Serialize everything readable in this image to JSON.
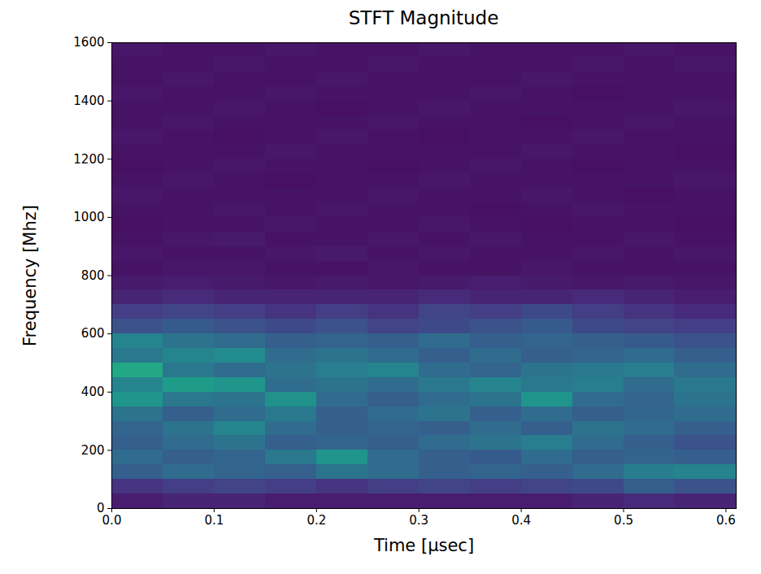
{
  "chart_data": {
    "type": "heatmap",
    "title": "STFT Magnitude",
    "x_label": "Time [μsec]",
    "y_label": "Frequency [Mhz]",
    "xlim": [
      0,
      0.61
    ],
    "ylim": [
      0,
      1600
    ],
    "xticks": [
      {
        "value": 0,
        "label": "0.0"
      },
      0.1,
      0.2,
      0.3,
      0.4,
      0.5,
      0.6
    ],
    "yticks": [
      0,
      200,
      400,
      600,
      800,
      1000,
      1200,
      1400,
      1600
    ],
    "grid": false,
    "color": "viridis",
    "magnitude_range": [
      0,
      1
    ],
    "time_edges": [
      0,
      0.05,
      0.1,
      0.15,
      0.2,
      0.25,
      0.3,
      0.35,
      0.4,
      0.45,
      0.5,
      0.55,
      0.61
    ],
    "frequency_edges": [
      0,
      50,
      100,
      150,
      200,
      250,
      300,
      350,
      400,
      450,
      500,
      550,
      600,
      650,
      700,
      750,
      800,
      850,
      900,
      950,
      1000,
      1050,
      1100,
      1150,
      1200,
      1250,
      1300,
      1350,
      1400,
      1450,
      1500,
      1550,
      1600
    ],
    "magnitude": [
      [
        0.08,
        0.1,
        0.1,
        0.08,
        0.08,
        0.08,
        0.08,
        0.08,
        0.08,
        0.1,
        0.12,
        0.1
      ],
      [
        0.15,
        0.18,
        0.2,
        0.18,
        0.15,
        0.18,
        0.2,
        0.18,
        0.2,
        0.22,
        0.3,
        0.25
      ],
      [
        0.3,
        0.35,
        0.32,
        0.3,
        0.38,
        0.35,
        0.3,
        0.32,
        0.3,
        0.35,
        0.42,
        0.45
      ],
      [
        0.35,
        0.3,
        0.32,
        0.4,
        0.52,
        0.35,
        0.3,
        0.28,
        0.35,
        0.3,
        0.32,
        0.3
      ],
      [
        0.3,
        0.35,
        0.38,
        0.3,
        0.32,
        0.3,
        0.35,
        0.38,
        0.42,
        0.35,
        0.3,
        0.25
      ],
      [
        0.32,
        0.38,
        0.45,
        0.35,
        0.3,
        0.32,
        0.3,
        0.35,
        0.3,
        0.38,
        0.35,
        0.3
      ],
      [
        0.38,
        0.3,
        0.35,
        0.4,
        0.3,
        0.35,
        0.38,
        0.3,
        0.35,
        0.3,
        0.33,
        0.35
      ],
      [
        0.52,
        0.4,
        0.38,
        0.5,
        0.35,
        0.3,
        0.35,
        0.38,
        0.52,
        0.35,
        0.32,
        0.38
      ],
      [
        0.45,
        0.55,
        0.52,
        0.35,
        0.38,
        0.35,
        0.4,
        0.45,
        0.4,
        0.42,
        0.35,
        0.4
      ],
      [
        0.6,
        0.4,
        0.35,
        0.38,
        0.42,
        0.45,
        0.35,
        0.32,
        0.38,
        0.4,
        0.42,
        0.35
      ],
      [
        0.4,
        0.45,
        0.48,
        0.35,
        0.38,
        0.35,
        0.3,
        0.35,
        0.3,
        0.32,
        0.35,
        0.3
      ],
      [
        0.45,
        0.38,
        0.35,
        0.3,
        0.32,
        0.3,
        0.35,
        0.3,
        0.32,
        0.3,
        0.28,
        0.25
      ],
      [
        0.25,
        0.28,
        0.25,
        0.22,
        0.25,
        0.2,
        0.22,
        0.25,
        0.28,
        0.22,
        0.2,
        0.18
      ],
      [
        0.18,
        0.2,
        0.18,
        0.15,
        0.18,
        0.15,
        0.2,
        0.18,
        0.22,
        0.18,
        0.15,
        0.12
      ],
      [
        0.1,
        0.12,
        0.1,
        0.1,
        0.1,
        0.1,
        0.12,
        0.1,
        0.1,
        0.12,
        0.1,
        0.08
      ],
      [
        0.07,
        0.08,
        0.07,
        0.06,
        0.07,
        0.06,
        0.07,
        0.08,
        0.07,
        0.06,
        0.07,
        0.06
      ],
      [
        0.05,
        0.06,
        0.06,
        0.05,
        0.05,
        0.06,
        0.05,
        0.05,
        0.06,
        0.05,
        0.05,
        0.05
      ],
      [
        0.06,
        0.05,
        0.05,
        0.06,
        0.07,
        0.05,
        0.06,
        0.05,
        0.05,
        0.06,
        0.05,
        0.06
      ],
      [
        0.05,
        0.06,
        0.07,
        0.05,
        0.05,
        0.06,
        0.05,
        0.06,
        0.05,
        0.05,
        0.06,
        0.05
      ],
      [
        0.04,
        0.05,
        0.05,
        0.06,
        0.05,
        0.05,
        0.06,
        0.05,
        0.04,
        0.05,
        0.05,
        0.04
      ],
      [
        0.05,
        0.05,
        0.06,
        0.05,
        0.06,
        0.05,
        0.05,
        0.04,
        0.05,
        0.06,
        0.05,
        0.05
      ],
      [
        0.06,
        0.05,
        0.05,
        0.05,
        0.05,
        0.06,
        0.05,
        0.05,
        0.06,
        0.05,
        0.04,
        0.05
      ],
      [
        0.05,
        0.06,
        0.05,
        0.04,
        0.05,
        0.05,
        0.06,
        0.05,
        0.05,
        0.05,
        0.05,
        0.06
      ],
      [
        0.04,
        0.05,
        0.06,
        0.05,
        0.05,
        0.04,
        0.05,
        0.06,
        0.05,
        0.04,
        0.05,
        0.05
      ],
      [
        0.05,
        0.05,
        0.05,
        0.06,
        0.05,
        0.05,
        0.05,
        0.05,
        0.06,
        0.05,
        0.05,
        0.04
      ],
      [
        0.06,
        0.05,
        0.04,
        0.05,
        0.06,
        0.05,
        0.04,
        0.05,
        0.05,
        0.06,
        0.05,
        0.05
      ],
      [
        0.05,
        0.06,
        0.05,
        0.05,
        0.05,
        0.06,
        0.05,
        0.05,
        0.04,
        0.05,
        0.06,
        0.05
      ],
      [
        0.05,
        0.05,
        0.06,
        0.05,
        0.04,
        0.05,
        0.06,
        0.05,
        0.05,
        0.05,
        0.05,
        0.06
      ],
      [
        0.06,
        0.05,
        0.05,
        0.06,
        0.05,
        0.05,
        0.05,
        0.06,
        0.05,
        0.04,
        0.05,
        0.05
      ],
      [
        0.05,
        0.06,
        0.05,
        0.05,
        0.06,
        0.05,
        0.05,
        0.05,
        0.06,
        0.05,
        0.05,
        0.05
      ],
      [
        0.05,
        0.05,
        0.06,
        0.05,
        0.05,
        0.06,
        0.05,
        0.05,
        0.05,
        0.06,
        0.05,
        0.06
      ],
      [
        0.06,
        0.05,
        0.05,
        0.06,
        0.05,
        0.05,
        0.06,
        0.05,
        0.05,
        0.05,
        0.06,
        0.05
      ]
    ]
  }
}
